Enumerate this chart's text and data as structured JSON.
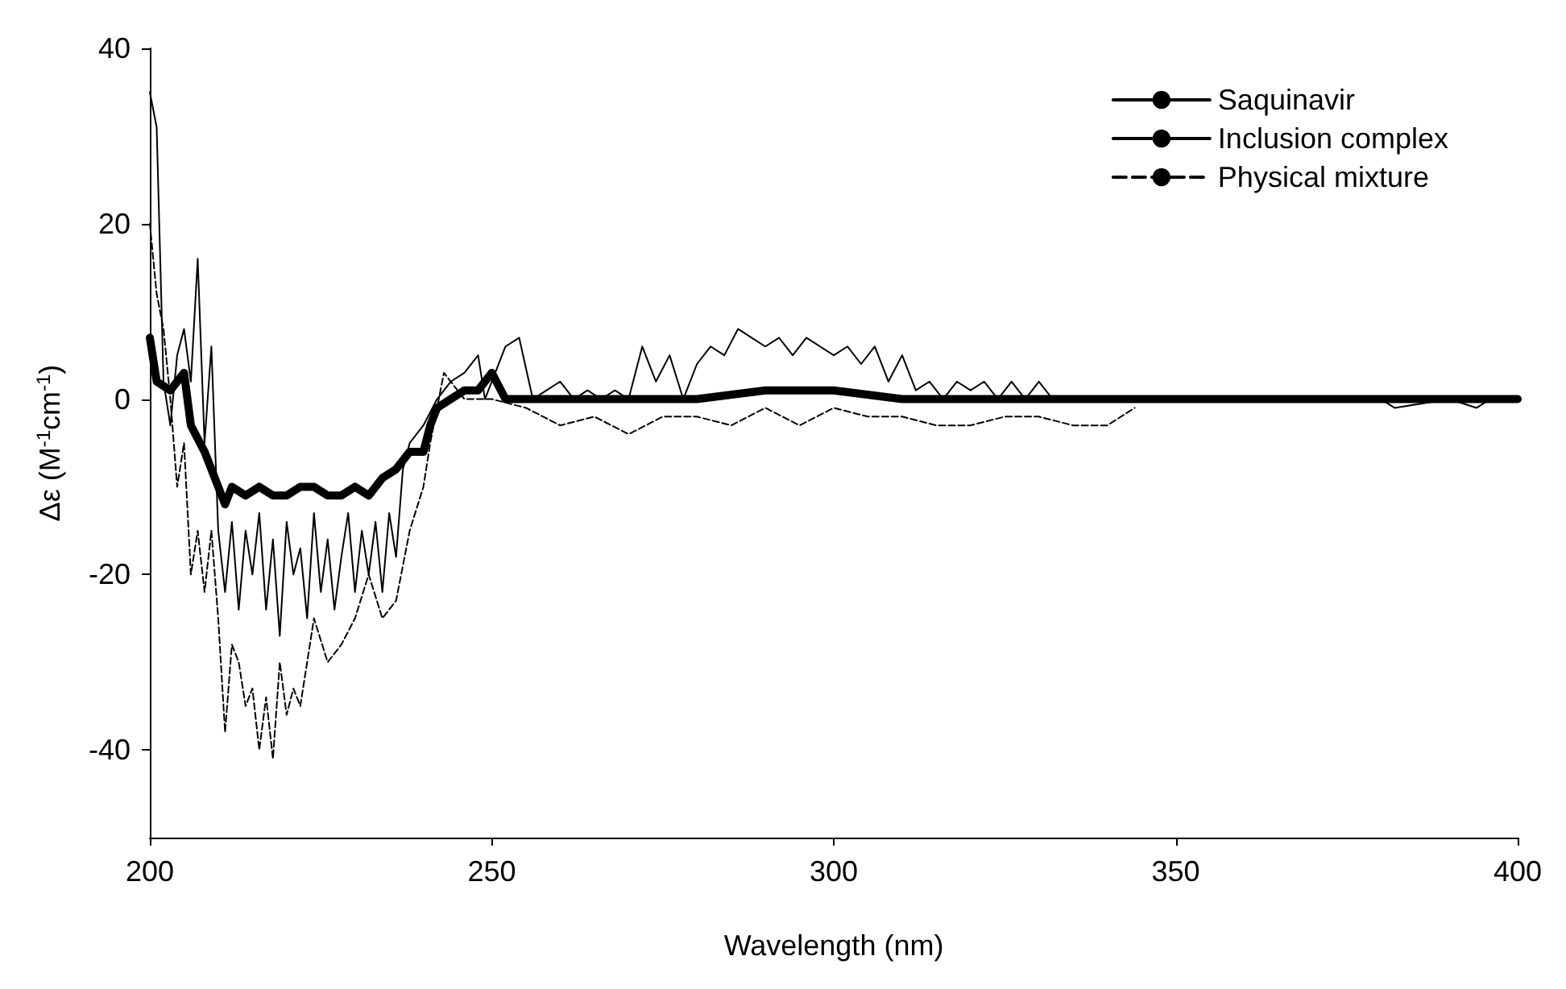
{
  "chart_data": {
    "type": "line",
    "xlabel": "Wavelength (nm)",
    "ylabel": "Δε (M$^{-1}$cm$^{-1}$)",
    "xlim": [
      200,
      400
    ],
    "xticks": [
      200,
      250,
      300,
      350,
      400
    ],
    "ylim": [
      -50,
      40
    ],
    "yticks": [
      -40,
      -20,
      0,
      20,
      40
    ],
    "grid": false,
    "legend": "top right",
    "marker": "none",
    "series": [
      {
        "name": "Saquinavir",
        "color": "#000000",
        "line_style": "solid",
        "x": [
          200,
          201,
          202,
          203,
          204,
          205,
          206,
          207,
          208,
          209,
          210,
          211,
          212,
          213,
          214,
          215,
          216,
          217,
          218,
          219,
          220,
          221,
          222,
          223,
          224,
          225,
          226,
          227,
          228,
          229,
          230,
          231,
          232,
          233,
          234,
          235,
          236,
          237,
          238,
          240,
          242,
          244,
          246,
          248,
          249,
          250,
          252,
          254,
          256,
          258,
          260,
          262,
          264,
          266,
          268,
          270,
          272,
          274,
          276,
          278,
          280,
          282,
          284,
          286,
          288,
          290,
          292,
          294,
          296,
          298,
          300,
          302,
          304,
          306,
          308,
          310,
          312,
          314,
          316,
          318,
          320,
          322,
          324,
          326,
          328,
          330,
          332,
          335,
          340,
          360,
          380,
          382,
          390,
          394,
          396,
          400
        ],
        "values": [
          35,
          31,
          2,
          -3,
          5,
          8,
          2,
          16,
          -5,
          6,
          -15,
          -22,
          -14,
          -24,
          -15,
          -20,
          -13,
          -24,
          -16,
          -27,
          -14,
          -20,
          -17,
          -25,
          -13,
          -22,
          -16,
          -24,
          -18,
          -13,
          -22,
          -15,
          -20,
          -14,
          -22,
          -13,
          -18,
          -8,
          -5,
          -3,
          0,
          2,
          3,
          5,
          0,
          2,
          6,
          7,
          0,
          1,
          2,
          0,
          1,
          0,
          1,
          0,
          6,
          2,
          5,
          0,
          4,
          6,
          5,
          8,
          7,
          6,
          7,
          5,
          7,
          6,
          5,
          6,
          4,
          6,
          2,
          5,
          1,
          2,
          0,
          2,
          1,
          2,
          0,
          2,
          0,
          2,
          0,
          0,
          0,
          0,
          0,
          -1,
          0,
          -1,
          0,
          0
        ]
      },
      {
        "name": "Inclusion complex",
        "color": "#000000",
        "line_style": "solid",
        "x": [
          200,
          201,
          203,
          205,
          206,
          208,
          209,
          211,
          212,
          214,
          216,
          218,
          220,
          222,
          224,
          226,
          228,
          230,
          232,
          234,
          236,
          238,
          240,
          241,
          242,
          244,
          246,
          248,
          250,
          252,
          255,
          260,
          270,
          280,
          290,
          300,
          310,
          320,
          350,
          380,
          400
        ],
        "values": [
          7,
          2,
          1,
          3,
          -3,
          -6,
          -8,
          -12,
          -10,
          -11,
          -10,
          -11,
          -11,
          -10,
          -10,
          -11,
          -11,
          -10,
          -11,
          -9,
          -8,
          -6,
          -6,
          -3,
          -1,
          0,
          1,
          1,
          3,
          0,
          0,
          0,
          0,
          0,
          1,
          1,
          0,
          0,
          0,
          0,
          0
        ]
      },
      {
        "name": "Physical mixture",
        "color": "#000000",
        "line_style": "dashed",
        "x": [
          200,
          201,
          202,
          203,
          204,
          205,
          206,
          207,
          208,
          209,
          210,
          211,
          212,
          213,
          214,
          215,
          216,
          217,
          218,
          219,
          220,
          221,
          222,
          224,
          226,
          228,
          230,
          232,
          234,
          236,
          238,
          240,
          241,
          243,
          246,
          250,
          255,
          260,
          265,
          270,
          275,
          280,
          285,
          290,
          295,
          300,
          305,
          310,
          315,
          320,
          325,
          330,
          335,
          340,
          344
        ],
        "values": [
          20,
          12,
          8,
          0,
          -10,
          -5,
          -20,
          -15,
          -22,
          -15,
          -25,
          -38,
          -28,
          -30,
          -35,
          -33,
          -40,
          -34,
          -41,
          -30,
          -36,
          -33,
          -35,
          -25,
          -30,
          -28,
          -25,
          -20,
          -25,
          -23,
          -15,
          -10,
          -5,
          3,
          0,
          0,
          -1,
          -3,
          -2,
          -4,
          -2,
          -2,
          -3,
          -1,
          -3,
          -1,
          -2,
          -2,
          -3,
          -3,
          -2,
          -2,
          -3,
          -3,
          -1
        ]
      }
    ]
  }
}
